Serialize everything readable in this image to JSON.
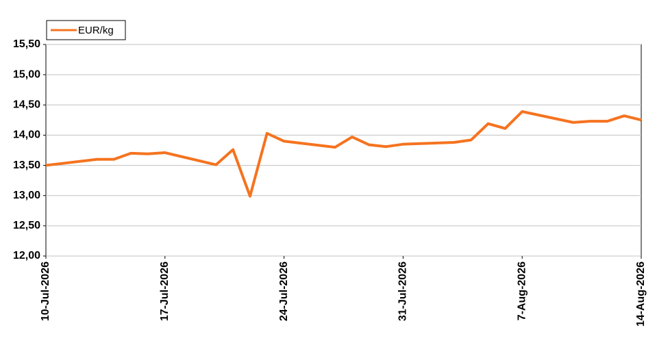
{
  "chart_data": {
    "type": "line",
    "x": [
      "2026-07-10",
      "2026-07-13",
      "2026-07-14",
      "2026-07-15",
      "2026-07-16",
      "2026-07-17",
      "2026-07-20",
      "2026-07-21",
      "2026-07-22",
      "2026-07-23",
      "2026-07-24",
      "2026-07-27",
      "2026-07-28",
      "2026-07-29",
      "2026-07-30",
      "2026-07-31",
      "2026-08-03",
      "2026-08-04",
      "2026-08-05",
      "2026-08-06",
      "2026-08-07",
      "2026-08-10",
      "2026-08-11",
      "2026-08-12",
      "2026-08-13",
      "2026-08-14"
    ],
    "series": [
      {
        "name": "EUR/kg",
        "color": "#f5731f",
        "values": [
          13.5,
          13.6,
          13.6,
          13.7,
          13.69,
          13.71,
          13.51,
          13.76,
          12.99,
          14.03,
          13.9,
          13.8,
          13.97,
          13.84,
          13.81,
          13.85,
          13.88,
          13.92,
          14.19,
          14.11,
          14.39,
          14.21,
          14.23,
          14.23,
          14.32,
          14.25
        ]
      }
    ],
    "xlim": [
      "2026-07-10",
      "2026-08-14"
    ],
    "xticks": [
      {
        "value": "2026-07-10",
        "label": "10-Jul-2026"
      },
      {
        "value": "2026-07-17",
        "label": "17-Jul-2026"
      },
      {
        "value": "2026-07-24",
        "label": "24-Jul-2026"
      },
      {
        "value": "2026-07-31",
        "label": "31-Jul-2026"
      },
      {
        "value": "2026-08-07",
        "label": "7-Aug-2026"
      },
      {
        "value": "2026-08-14",
        "label": "14-Aug-2026"
      }
    ],
    "ylim": [
      12,
      15.5
    ],
    "yticks": [
      {
        "value": 12,
        "label": "12,00"
      },
      {
        "value": 12.5,
        "label": "12,50"
      },
      {
        "value": 13,
        "label": "13,00"
      },
      {
        "value": 13.5,
        "label": "13,50"
      },
      {
        "value": 14,
        "label": "14,00"
      },
      {
        "value": 14.5,
        "label": "14,50"
      },
      {
        "value": 15,
        "label": "15,00"
      },
      {
        "value": 15.5,
        "label": "15,50"
      }
    ],
    "grid": true,
    "legend": "top-left"
  }
}
